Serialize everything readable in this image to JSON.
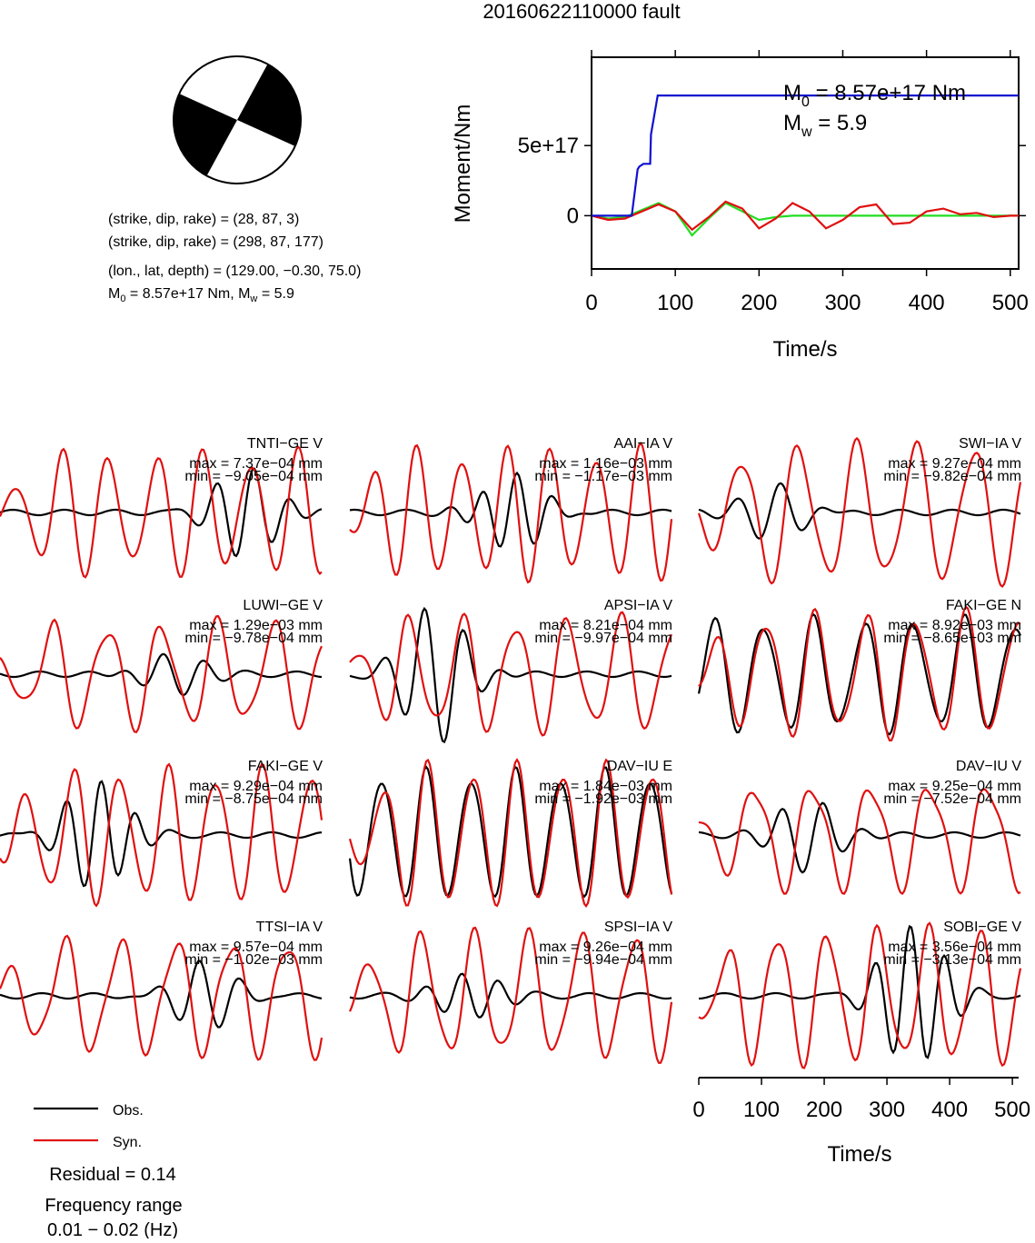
{
  "title": "20160622110000 fault",
  "mechanism": {
    "plane1": "(strike, dip, rake) = (28, 87, 3)",
    "plane2": "(strike, dip, rake) = (298, 87, 177)",
    "location": "(lon., lat, depth) = (129.00, −0.30, 75.0)",
    "moment_line": {
      "m0_label": "M",
      "m0_sub": "0",
      "m0_text": " = 8.57e+17 Nm, M",
      "mw_sub": "w",
      "mw_text": " = 5.9"
    }
  },
  "colors": {
    "obs": "#000000",
    "syn": "#e01010",
    "moment": "#1010d0",
    "stf_green": "#22dd22",
    "stf_red": "#e01010"
  },
  "chart_data": [
    {
      "type": "line",
      "name": "moment-function",
      "xlabel": "Time/s",
      "ylabel": "Moment/Nm",
      "xlim": [
        0,
        510
      ],
      "ylim": [
        -3.8e+17,
        1.13e+18
      ],
      "xticks": [
        0,
        100,
        200,
        300,
        400,
        500
      ],
      "xtick_labels": [
        "0",
        "100",
        "200",
        "300",
        "400",
        "500"
      ],
      "yticks": [
        0,
        5e+17
      ],
      "ytick_labels": [
        "0",
        "5e+17"
      ],
      "annotation": {
        "m0_label": "M",
        "m0_sub": "0",
        "m0_text": " = 8.57e+17 Nm",
        "mw_label": "M",
        "mw_sub": "w",
        "mw_text": " = 5.9"
      },
      "series": [
        {
          "color": "blue",
          "x": [
            0,
            48,
            55,
            57,
            62,
            70,
            71,
            79,
            80,
            510
          ],
          "y": [
            0,
            0,
            3.3e+17,
            3.5e+17,
            3.7e+17,
            3.7e+17,
            5.8e+17,
            8.57e+17,
            8.57e+17,
            8.57e+17
          ]
        },
        {
          "color": "red",
          "x": [
            0,
            20,
            40,
            60,
            80,
            100,
            120,
            140,
            160,
            180,
            200,
            220,
            240,
            260,
            280,
            300,
            320,
            340,
            360,
            380,
            400,
            420,
            440,
            460,
            480,
            500,
            510
          ],
          "y": [
            0,
            -3e+16,
            -2e+16,
            3e+16,
            8e+16,
            3e+16,
            -1e+17,
            -1e+16,
            1e+17,
            5e+16,
            -9e+16,
            -2e+16,
            9e+16,
            3e+16,
            -9e+16,
            -3e+16,
            6e+16,
            8e+16,
            -6e+16,
            -5e+16,
            3e+16,
            5e+16,
            1e+16,
            2e+16,
            -1e+16,
            0.0,
            0.0
          ]
        },
        {
          "color": "green",
          "x": [
            0,
            20,
            40,
            60,
            80,
            100,
            120,
            140,
            160,
            180,
            200,
            220,
            240,
            260,
            280,
            300,
            320,
            340,
            360,
            380,
            400,
            420,
            440,
            460,
            480,
            500,
            510
          ],
          "y": [
            0,
            -2e+16,
            -1e+16,
            4e+16,
            9e+16,
            3e+16,
            -1.4e+17,
            -2e+16,
            9e+16,
            3e+16,
            -3e+16,
            -1e+16,
            0.0,
            0.0,
            0.0,
            0.0,
            0.0,
            0.0,
            0.0,
            0.0,
            0.0,
            0.0,
            0.0,
            0.0,
            0.0,
            0.0,
            0.0
          ]
        }
      ]
    },
    {
      "type": "line",
      "name": "waveform-grid",
      "x_label": "Time/s",
      "xticks": [
        0,
        100,
        200,
        300,
        400,
        500
      ],
      "xtick_labels": [
        "0",
        "100",
        "200",
        "300",
        "400",
        "500"
      ],
      "xlim": [
        0,
        510
      ],
      "stations": [
        {
          "label": "TNTI−GE V",
          "max": "max = 7.37e−04 mm",
          "min": "min = −9.05e−04 mm"
        },
        {
          "label": "AAI−IA V",
          "max": "max = 1.16e−03 mm",
          "min": "min = −1.17e−03 mm"
        },
        {
          "label": "SWI−IA V",
          "max": "max = 9.27e−04 mm",
          "min": "min = −9.82e−04 mm"
        },
        {
          "label": "LUWI−GE V",
          "max": "max = 1.29e−03 mm",
          "min": "min = −9.78e−04 mm"
        },
        {
          "label": "APSI−IA V",
          "max": "max = 8.21e−04 mm",
          "min": "min = −9.97e−04 mm"
        },
        {
          "label": "FAKI−GE N",
          "max": "max = 8.92e−03 mm",
          "min": "min = −8.65e−03 mm"
        },
        {
          "label": "FAKI−GE V",
          "max": "max = 9.29e−04 mm",
          "min": "min = −8.75e−04 mm"
        },
        {
          "label": "DAV−IU E",
          "max": "max = 1.84e−03 mm",
          "min": "min = −1.92e−03 mm"
        },
        {
          "label": "DAV−IU V",
          "max": "max = 9.25e−04 mm",
          "min": "min = −7.52e−04 mm"
        },
        {
          "label": "TTSI−IA V",
          "max": "max = 9.57e−04 mm",
          "min": "min = −1.02e−03 mm"
        },
        {
          "label": "SPSI−IA V",
          "max": "max = 9.26e−04 mm",
          "min": "min = −9.94e−04 mm"
        },
        {
          "label": "SOBI−GE V",
          "max": "max = 3.56e−04 mm",
          "min": "min = −3.13e−04 mm"
        }
      ]
    }
  ],
  "legend": {
    "obs": "Obs.",
    "syn": "Syn."
  },
  "residual": "Residual = 0.14",
  "freq_label": "Frequency range",
  "freq_value": "0.01 − 0.02 (Hz)"
}
